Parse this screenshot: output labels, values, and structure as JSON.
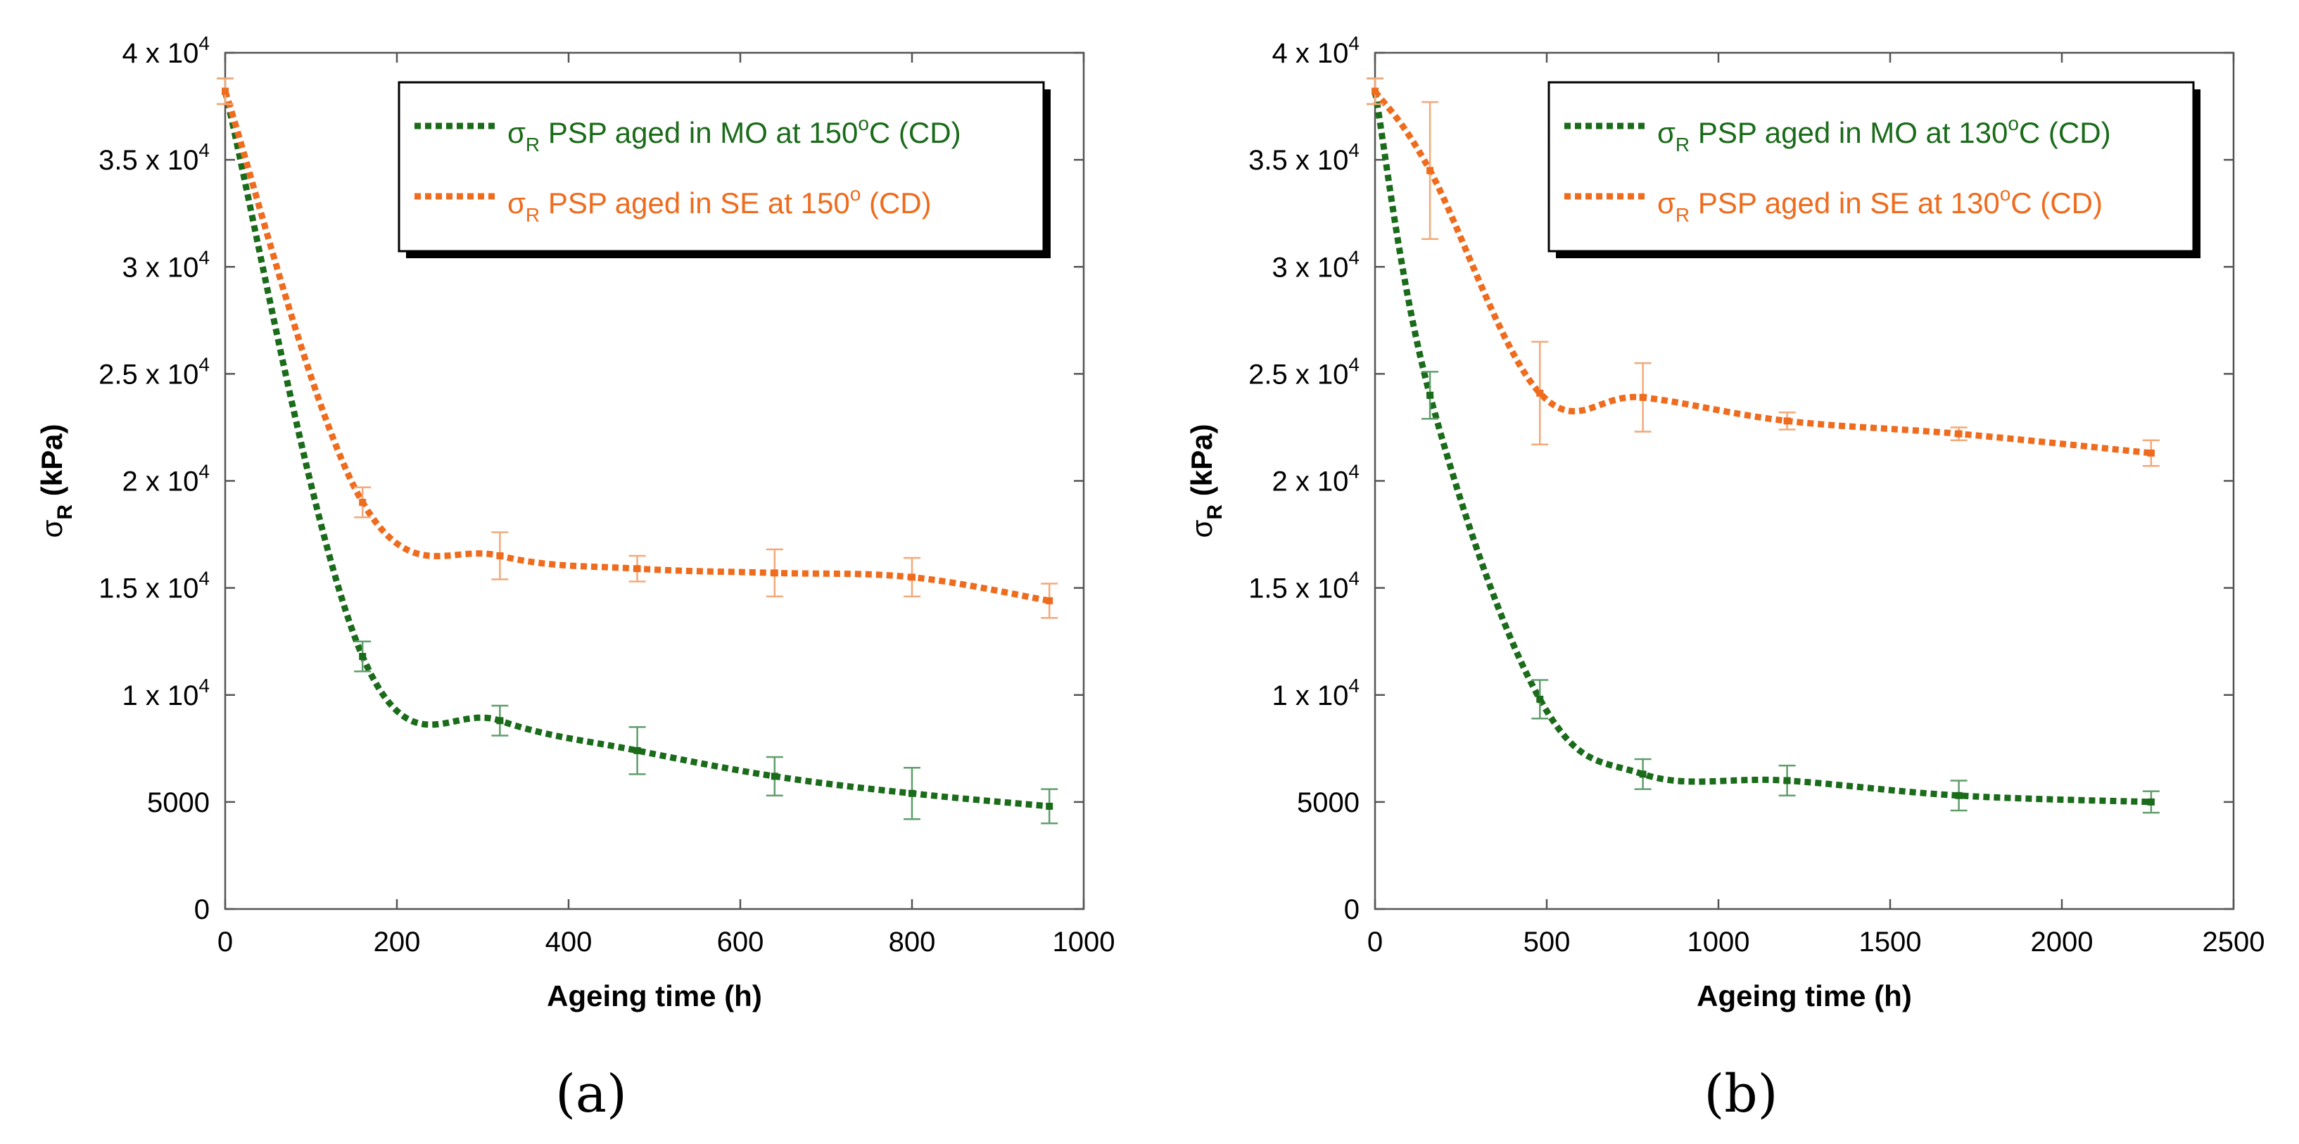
{
  "chart_data": [
    {
      "type": "line",
      "panel_label": "(a)",
      "xlabel": "Ageing time (h)",
      "ylabel_base": "σ",
      "ylabel_sub": "R",
      "ylabel_unit": " (kPa)",
      "xlim": [
        0,
        1000
      ],
      "ylim": [
        0,
        40000
      ],
      "x_ticks": [
        {
          "value": 0,
          "label": "0"
        },
        {
          "value": 200,
          "label": "200"
        },
        {
          "value": 400,
          "label": "400"
        },
        {
          "value": 600,
          "label": "600"
        },
        {
          "value": 800,
          "label": "800"
        },
        {
          "value": 1000,
          "label": "1000"
        }
      ],
      "y_ticks": [
        {
          "value": 0,
          "mant": "0",
          "exp": ""
        },
        {
          "value": 5000,
          "mant": "5000",
          "exp": ""
        },
        {
          "value": 10000,
          "mant": "1 x 10",
          "exp": "4"
        },
        {
          "value": 15000,
          "mant": "1.5 x 10",
          "exp": "4"
        },
        {
          "value": 20000,
          "mant": "2 x 10",
          "exp": "4"
        },
        {
          "value": 25000,
          "mant": "2.5 x 10",
          "exp": "4"
        },
        {
          "value": 30000,
          "mant": "3 x 10",
          "exp": "4"
        },
        {
          "value": 35000,
          "mant": "3.5 x 10",
          "exp": "4"
        },
        {
          "value": 40000,
          "mant": "4 x 10",
          "exp": "4"
        }
      ],
      "legend_position": "top-right",
      "series": [
        {
          "label_base": "σ",
          "label_sub": "R",
          "label_rest": " PSP aged in MO at 150",
          "label_sup": "o",
          "label_end": "C (CD)",
          "color": "#1a6b1a",
          "errorbar_color": "#5f9e6b",
          "points": [
            {
              "x": 0,
              "y": 38200,
              "err": 600
            },
            {
              "x": 160,
              "y": 11800,
              "err": 700
            },
            {
              "x": 320,
              "y": 8800,
              "err": 700
            },
            {
              "x": 480,
              "y": 7400,
              "err": 1100
            },
            {
              "x": 640,
              "y": 6200,
              "err": 900
            },
            {
              "x": 800,
              "y": 5400,
              "err": 1200
            },
            {
              "x": 960,
              "y": 4800,
              "err": 800
            }
          ]
        },
        {
          "label_base": "σ",
          "label_sub": "R",
          "label_rest": " PSP aged in SE at 150",
          "label_sup": "o",
          "label_end": " (CD)",
          "color": "#ef6b1d",
          "errorbar_color": "#f4a878",
          "points": [
            {
              "x": 0,
              "y": 38200,
              "err": 600
            },
            {
              "x": 160,
              "y": 19000,
              "err": 700
            },
            {
              "x": 320,
              "y": 16500,
              "err": 1100
            },
            {
              "x": 480,
              "y": 15900,
              "err": 600
            },
            {
              "x": 640,
              "y": 15700,
              "err": 1100
            },
            {
              "x": 800,
              "y": 15500,
              "err": 900
            },
            {
              "x": 960,
              "y": 14400,
              "err": 800
            }
          ]
        }
      ]
    },
    {
      "type": "line",
      "panel_label": "(b)",
      "xlabel": "Ageing time (h)",
      "ylabel_base": "σ",
      "ylabel_sub": "R",
      "ylabel_unit": " (kPa)",
      "xlim": [
        0,
        2500
      ],
      "ylim": [
        0,
        40000
      ],
      "x_ticks": [
        {
          "value": 0,
          "label": "0"
        },
        {
          "value": 500,
          "label": "500"
        },
        {
          "value": 1000,
          "label": "1000"
        },
        {
          "value": 1500,
          "label": "1500"
        },
        {
          "value": 2000,
          "label": "2000"
        },
        {
          "value": 2500,
          "label": "2500"
        }
      ],
      "y_ticks": [
        {
          "value": 0,
          "mant": "0",
          "exp": ""
        },
        {
          "value": 5000,
          "mant": "5000",
          "exp": ""
        },
        {
          "value": 10000,
          "mant": "1 x 10",
          "exp": "4"
        },
        {
          "value": 15000,
          "mant": "1.5 x 10",
          "exp": "4"
        },
        {
          "value": 20000,
          "mant": "2 x 10",
          "exp": "4"
        },
        {
          "value": 25000,
          "mant": "2.5 x 10",
          "exp": "4"
        },
        {
          "value": 30000,
          "mant": "3 x 10",
          "exp": "4"
        },
        {
          "value": 35000,
          "mant": "3.5 x 10",
          "exp": "4"
        },
        {
          "value": 40000,
          "mant": "4 x 10",
          "exp": "4"
        }
      ],
      "legend_position": "top-right",
      "series": [
        {
          "label_base": "σ",
          "label_sub": "R",
          "label_rest": " PSP aged in MO at 130",
          "label_sup": "o",
          "label_end": "C (CD)",
          "color": "#1a6b1a",
          "errorbar_color": "#5f9e6b",
          "points": [
            {
              "x": 0,
              "y": 38200,
              "err": 600
            },
            {
              "x": 160,
              "y": 24000,
              "err": 1100
            },
            {
              "x": 480,
              "y": 9800,
              "err": 900
            },
            {
              "x": 780,
              "y": 6300,
              "err": 700
            },
            {
              "x": 1200,
              "y": 6000,
              "err": 700
            },
            {
              "x": 1700,
              "y": 5300,
              "err": 700
            },
            {
              "x": 2260,
              "y": 5000,
              "err": 500
            }
          ]
        },
        {
          "label_base": "σ",
          "label_sub": "R",
          "label_rest": " PSP aged in SE at 130",
          "label_sup": "o",
          "label_end": "C (CD)",
          "color": "#ef6b1d",
          "errorbar_color": "#f4a878",
          "points": [
            {
              "x": 0,
              "y": 38200,
              "err": 600
            },
            {
              "x": 160,
              "y": 34500,
              "err": 3200
            },
            {
              "x": 480,
              "y": 24100,
              "err": 2400
            },
            {
              "x": 780,
              "y": 23900,
              "err": 1600
            },
            {
              "x": 1200,
              "y": 22800,
              "err": 400
            },
            {
              "x": 1700,
              "y": 22200,
              "err": 300
            },
            {
              "x": 2260,
              "y": 21300,
              "err": 600
            }
          ]
        }
      ]
    }
  ]
}
